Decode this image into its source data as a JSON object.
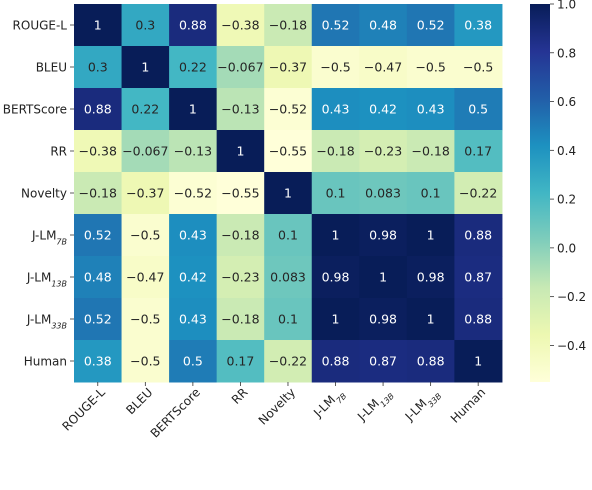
{
  "chart_data": {
    "type": "heatmap",
    "title": "",
    "row_labels": [
      {
        "text": "ROUGE-L",
        "sub": ""
      },
      {
        "text": "BLEU",
        "sub": ""
      },
      {
        "text": "BERTScore",
        "sub": ""
      },
      {
        "text": "RR",
        "sub": ""
      },
      {
        "text": "Novelty",
        "sub": ""
      },
      {
        "text": "J-LM",
        "sub": "7B"
      },
      {
        "text": "J-LM",
        "sub": "13B"
      },
      {
        "text": "J-LM",
        "sub": "33B"
      },
      {
        "text": "Human",
        "sub": ""
      }
    ],
    "col_labels": [
      {
        "text": "ROUGE-L",
        "sub": ""
      },
      {
        "text": "BLEU",
        "sub": ""
      },
      {
        "text": "BERTScore",
        "sub": ""
      },
      {
        "text": "RR",
        "sub": ""
      },
      {
        "text": "Novelty",
        "sub": ""
      },
      {
        "text": "J-LM",
        "sub": "7B"
      },
      {
        "text": "J-LM",
        "sub": "13B"
      },
      {
        "text": "J-LM",
        "sub": "33B"
      },
      {
        "text": "Human",
        "sub": ""
      }
    ],
    "values": [
      [
        1,
        0.3,
        0.88,
        -0.38,
        -0.18,
        0.52,
        0.48,
        0.52,
        0.38
      ],
      [
        0.3,
        1,
        0.22,
        -0.067,
        -0.37,
        -0.5,
        -0.47,
        -0.5,
        -0.5
      ],
      [
        0.88,
        0.22,
        1,
        -0.13,
        -0.52,
        0.43,
        0.42,
        0.43,
        0.5
      ],
      [
        -0.38,
        -0.067,
        -0.13,
        1,
        -0.55,
        -0.18,
        -0.23,
        -0.18,
        0.17
      ],
      [
        -0.18,
        -0.37,
        -0.52,
        -0.55,
        1,
        0.1,
        0.083,
        0.1,
        -0.22
      ],
      [
        0.52,
        -0.5,
        0.43,
        -0.18,
        0.1,
        1,
        0.98,
        1,
        0.88
      ],
      [
        0.48,
        -0.47,
        0.42,
        -0.23,
        0.083,
        0.98,
        1,
        0.98,
        0.87
      ],
      [
        0.52,
        -0.5,
        0.43,
        -0.18,
        0.1,
        1,
        0.98,
        1,
        0.88
      ],
      [
        0.38,
        -0.5,
        0.5,
        0.17,
        -0.22,
        0.88,
        0.87,
        0.88,
        1
      ]
    ],
    "colormap": "YlGnBu",
    "colormap_stops": [
      "#ffffd9",
      "#edf8b1",
      "#c7e9b4",
      "#7fcdbb",
      "#41b6c4",
      "#1d91c0",
      "#225ea8",
      "#253494",
      "#081d58"
    ],
    "vmin": -0.55,
    "vmax": 1.0,
    "colorbar_ticks": [
      1.0,
      0.8,
      0.6,
      0.4,
      0.2,
      0.0,
      -0.2,
      -0.4
    ],
    "colorbar_tick_labels": [
      "1.0",
      "0.8",
      "0.6",
      "0.4",
      "0.2",
      "0.0",
      "−0.2",
      "−0.4"
    ],
    "grid": false,
    "legend": "colorbar-right"
  }
}
